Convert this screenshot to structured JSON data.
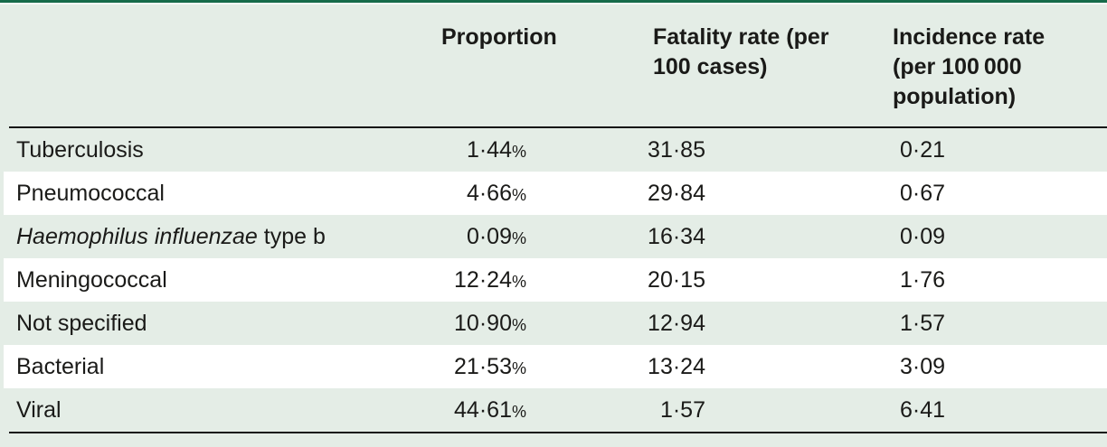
{
  "table": {
    "headers": {
      "label": "",
      "proportion": "Proportion",
      "fatality": "Fatality rate (per\n100 cases)",
      "incidence": "Incidence rate\n(per 100 000\npopulation)"
    },
    "percent_sign": "%",
    "rows": [
      {
        "label_italic": "",
        "label": "Tuberculosis",
        "proportion": "1·44",
        "fatality": "31·85",
        "incidence": "0·21"
      },
      {
        "label_italic": "",
        "label": "Pneumococcal",
        "proportion": "4·66",
        "fatality": "29·84",
        "incidence": "0·67"
      },
      {
        "label_italic": "Haemophilus influenzae",
        "label": " type b",
        "proportion": "0·09",
        "fatality": "16·34",
        "incidence": "0·09"
      },
      {
        "label_italic": "",
        "label": "Meningococcal",
        "proportion": "12·24",
        "fatality": "20·15",
        "incidence": "1·76"
      },
      {
        "label_italic": "",
        "label": "Not specified",
        "proportion": "10·90",
        "fatality": "12·94",
        "incidence": "1·57"
      },
      {
        "label_italic": "",
        "label": "Bacterial",
        "proportion": "21·53",
        "fatality": "13·24",
        "incidence": "3·09"
      },
      {
        "label_italic": "",
        "label": "Viral",
        "proportion": "44·61",
        "fatality": "1·57",
        "incidence": "6·41"
      }
    ]
  },
  "colors": {
    "accent_green": "#166b4a",
    "stripe_green": "#e4ede6",
    "alt_row_white": "#ffffff",
    "rule_black": "#141414",
    "text": "#1a1a18"
  },
  "chart_data": {
    "type": "table",
    "columns": [
      "",
      "Proportion",
      "Fatality rate (per 100 cases)",
      "Incidence rate (per 100 000 population)"
    ],
    "rows": [
      [
        "Tuberculosis",
        "1·44%",
        "31·85",
        "0·21"
      ],
      [
        "Pneumococcal",
        "4·66%",
        "29·84",
        "0·67"
      ],
      [
        "Haemophilus influenzae type b",
        "0·09%",
        "16·34",
        "0·09"
      ],
      [
        "Meningococcal",
        "12·24%",
        "20·15",
        "1·76"
      ],
      [
        "Not specified",
        "10·90%",
        "12·94",
        "1·57"
      ],
      [
        "Bacterial",
        "21·53%",
        "13·24",
        "3·09"
      ],
      [
        "Viral",
        "44·61%",
        "1·57",
        "6·41"
      ]
    ]
  }
}
